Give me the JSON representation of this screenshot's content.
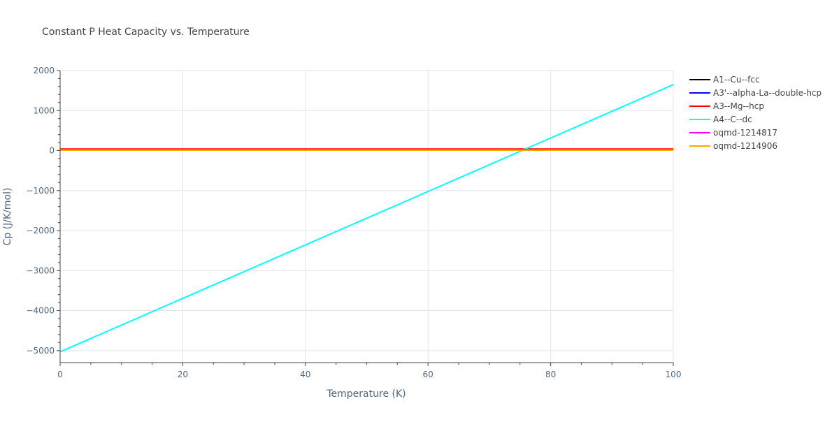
{
  "chart_data": {
    "type": "line",
    "title": "Constant P Heat Capacity vs. Temperature",
    "xlabel": "Temperature (K)",
    "ylabel": "Cp (J/K/mol)",
    "xlim": [
      0,
      100
    ],
    "ylim": [
      -5300,
      2000
    ],
    "x_ticks": [
      0,
      20,
      40,
      60,
      80,
      100
    ],
    "y_ticks": [
      2000,
      1000,
      0,
      -1000,
      -2000,
      -3000,
      -4000,
      -5000
    ],
    "y_tick_labels": [
      "2000",
      "1000",
      "0",
      "−1000",
      "−2000",
      "−3000",
      "−4000",
      "−5000"
    ],
    "grid": true,
    "legend_position": "top-right outside",
    "series": [
      {
        "name": "A1--Cu--fcc",
        "color": "#000000",
        "x": [
          0,
          100
        ],
        "y": [
          30,
          30
        ]
      },
      {
        "name": "A3'--alpha-La--double-hcp",
        "color": "#0000ff",
        "x": [
          0,
          100
        ],
        "y": [
          30,
          30
        ]
      },
      {
        "name": "A3--Mg--hcp",
        "color": "#ff0000",
        "x": [
          0,
          100
        ],
        "y": [
          40,
          40
        ]
      },
      {
        "name": "A4--C--dc",
        "color": "#00ffff",
        "x": [
          0,
          100
        ],
        "y": [
          -5030,
          1650
        ]
      },
      {
        "name": "oqmd-1214817",
        "color": "#ff00ff",
        "x": [
          0,
          100
        ],
        "y": [
          25,
          25
        ]
      },
      {
        "name": "oqmd-1214906",
        "color": "#ffa500",
        "x": [
          0,
          100
        ],
        "y": [
          10,
          10
        ]
      }
    ]
  }
}
